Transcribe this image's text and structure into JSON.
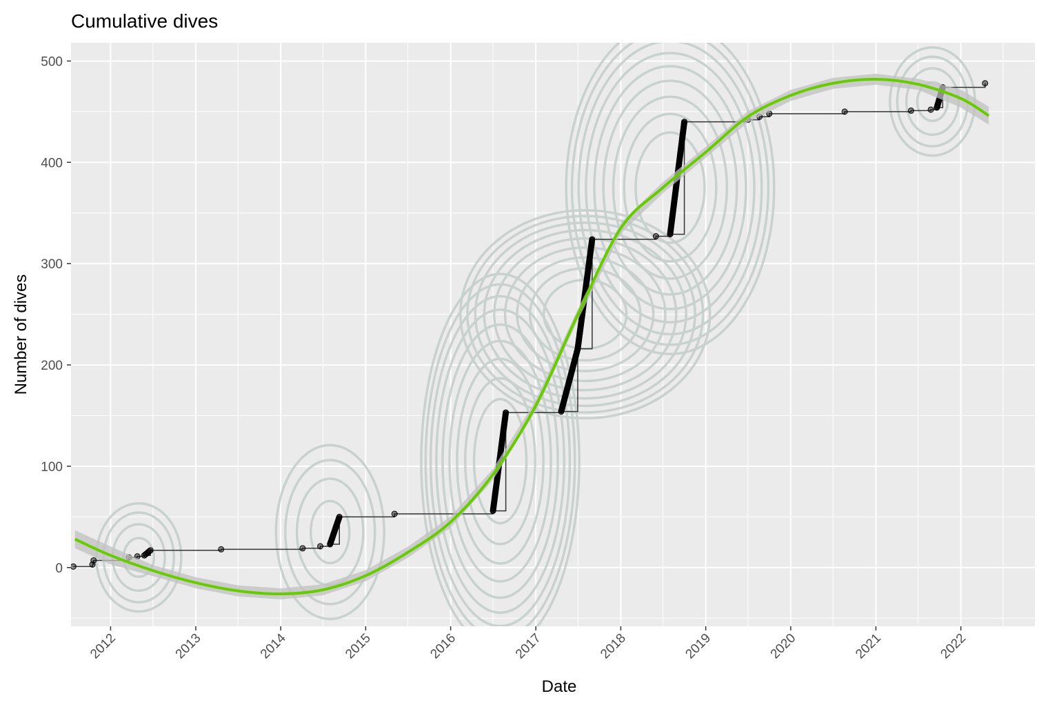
{
  "chart_data": {
    "type": "line",
    "title": "Cumulative dives",
    "xlabel": "Date",
    "ylabel": "Number of dives",
    "x_ticks": [
      "2012",
      "2013",
      "2014",
      "2015",
      "2016",
      "2017",
      "2018",
      "2019",
      "2020",
      "2021",
      "2022"
    ],
    "y_ticks": [
      0,
      100,
      200,
      300,
      400,
      500
    ],
    "xlim": [
      "2011-07-15",
      "2022-11-15"
    ],
    "ylim": [
      -58,
      518
    ],
    "grid": true,
    "legend": "none",
    "colors": {
      "panel": "#ebebeb",
      "grid": "#ffffff",
      "points": "#000000",
      "step": "#333333",
      "smooth": "#66cc00",
      "ribbon": "#c0c0c0",
      "density": "#c4cdc9"
    },
    "series": [
      {
        "type": "step",
        "points": [
          [
            "2011-07-25",
            1
          ],
          [
            "2011-10-15",
            3
          ],
          [
            "2011-10-20",
            7
          ],
          [
            "2012-03-20",
            10
          ],
          [
            "2012-04-25",
            11
          ],
          [
            "2012-05-25",
            12
          ],
          [
            "2012-06-20",
            17
          ],
          [
            "2013-04-20",
            18
          ],
          [
            "2014-04-05",
            19
          ],
          [
            "2014-06-20",
            21
          ],
          [
            "2014-08-01",
            23
          ],
          [
            "2014-09-10",
            50
          ],
          [
            "2015-05-05",
            53
          ],
          [
            "2016-07-01",
            56
          ],
          [
            "2016-08-25",
            153
          ],
          [
            "2017-04-20",
            154
          ],
          [
            "2017-06-30",
            216
          ],
          [
            "2017-08-31",
            324
          ],
          [
            "2018-06-01",
            327
          ],
          [
            "2018-08-01",
            329
          ],
          [
            "2018-10-01",
            440
          ],
          [
            "2019-07-01",
            442
          ],
          [
            "2019-08-20",
            445
          ],
          [
            "2019-10-01",
            448
          ],
          [
            "2020-08-20",
            450
          ],
          [
            "2021-06-01",
            451
          ],
          [
            "2021-08-25",
            452
          ],
          [
            "2021-09-20",
            454
          ],
          [
            "2021-10-15",
            474
          ],
          [
            "2022-04-15",
            478
          ]
        ]
      },
      {
        "type": "smooth",
        "points": [
          [
            "2011-08-01",
            28
          ],
          [
            "2012-01-01",
            12
          ],
          [
            "2012-07-01",
            -3
          ],
          [
            "2013-01-01",
            -15
          ],
          [
            "2013-07-01",
            -23
          ],
          [
            "2014-01-01",
            -26
          ],
          [
            "2014-07-01",
            -22
          ],
          [
            "2015-01-01",
            -8
          ],
          [
            "2015-07-01",
            15
          ],
          [
            "2016-01-01",
            45
          ],
          [
            "2016-07-01",
            92
          ],
          [
            "2017-01-01",
            160
          ],
          [
            "2017-07-01",
            250
          ],
          [
            "2018-01-01",
            335
          ],
          [
            "2018-07-01",
            375
          ],
          [
            "2019-01-01",
            410
          ],
          [
            "2019-07-01",
            445
          ],
          [
            "2020-01-01",
            466
          ],
          [
            "2020-07-01",
            478
          ],
          [
            "2021-01-01",
            482
          ],
          [
            "2021-07-01",
            477
          ],
          [
            "2022-01-01",
            463
          ],
          [
            "2022-05-01",
            446
          ]
        ]
      },
      {
        "type": "density2d",
        "centers": [
          {
            "x": "2016-08-01",
            "y": 105
          },
          {
            "x": "2017-08-01",
            "y": 250
          },
          {
            "x": "2018-08-01",
            "y": 375
          },
          {
            "x": "2014-08-01",
            "y": 35
          },
          {
            "x": "2012-05-01",
            "y": 10
          },
          {
            "x": "2021-09-01",
            "y": 460
          }
        ]
      }
    ]
  }
}
